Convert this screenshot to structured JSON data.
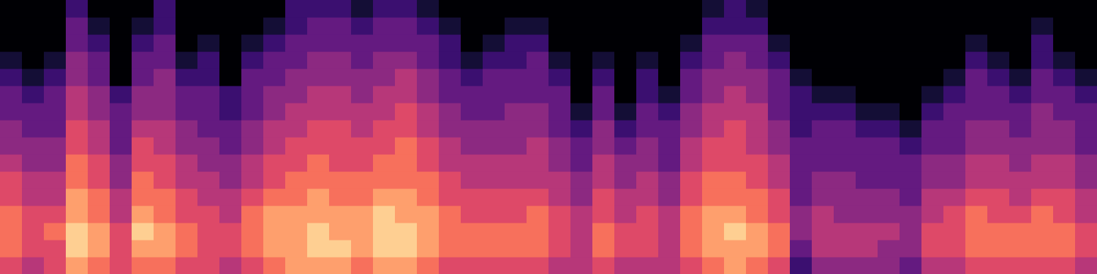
{
  "chart_data": {
    "type": "heatmap",
    "color": "magma",
    "clim": [
      0,
      10
    ],
    "tick_labels": false,
    "frames": [
      [
        6,
        7,
        7,
        7,
        6,
        6,
        5,
        4,
        4,
        3,
        3,
        2,
        1,
        0,
        0,
        0
      ],
      [
        5,
        6,
        6,
        6,
        5,
        5,
        4,
        4,
        3,
        3,
        2,
        1,
        0,
        0,
        0,
        0
      ],
      [
        6,
        6,
        7,
        6,
        5,
        5,
        4,
        4,
        3,
        3,
        3,
        2,
        1,
        0,
        0,
        0
      ],
      [
        8,
        9,
        9,
        8,
        8,
        7,
        7,
        6,
        6,
        5,
        5,
        4,
        4,
        3,
        3,
        2
      ],
      [
        7,
        8,
        8,
        7,
        7,
        6,
        6,
        5,
        5,
        4,
        4,
        3,
        3,
        2,
        1,
        0
      ],
      [
        6,
        6,
        6,
        5,
        5,
        4,
        4,
        3,
        3,
        3,
        2,
        0,
        0,
        0,
        0,
        0
      ],
      [
        7,
        8,
        9,
        8,
        7,
        7,
        6,
        6,
        5,
        4,
        4,
        3,
        3,
        2,
        1,
        0
      ],
      [
        7,
        8,
        8,
        7,
        7,
        6,
        6,
        5,
        5,
        4,
        4,
        4,
        3,
        3,
        2,
        2
      ],
      [
        6,
        7,
        7,
        6,
        6,
        5,
        5,
        4,
        4,
        3,
        3,
        2,
        1,
        0,
        0,
        0
      ],
      [
        6,
        6,
        6,
        6,
        5,
        5,
        4,
        4,
        3,
        3,
        3,
        2,
        2,
        1,
        0,
        0
      ],
      [
        5,
        6,
        6,
        5,
        5,
        4,
        4,
        3,
        3,
        2,
        2,
        0,
        0,
        0,
        0,
        0
      ],
      [
        6,
        7,
        7,
        7,
        6,
        5,
        5,
        4,
        4,
        3,
        3,
        3,
        2,
        1,
        0,
        0
      ],
      [
        7,
        8,
        8,
        8,
        7,
        6,
        6,
        5,
        5,
        4,
        4,
        3,
        3,
        2,
        1,
        0
      ],
      [
        8,
        8,
        8,
        8,
        7,
        7,
        6,
        6,
        5,
        5,
        4,
        4,
        3,
        3,
        2,
        2
      ],
      [
        8,
        9,
        9,
        8,
        8,
        7,
        7,
        6,
        6,
        5,
        5,
        4,
        4,
        3,
        3,
        2
      ],
      [
        8,
        9,
        8,
        8,
        7,
        7,
        6,
        6,
        6,
        5,
        5,
        4,
        4,
        3,
        3,
        2
      ],
      [
        7,
        8,
        8,
        8,
        7,
        7,
        6,
        6,
        5,
        5,
        4,
        4,
        3,
        3,
        2,
        1
      ],
      [
        8,
        9,
        9,
        9,
        8,
        7,
        7,
        6,
        6,
        5,
        5,
        4,
        4,
        3,
        3,
        2
      ],
      [
        8,
        9,
        9,
        8,
        8,
        7,
        7,
        7,
        6,
        6,
        5,
        5,
        4,
        3,
        3,
        2
      ],
      [
        7,
        8,
        8,
        8,
        7,
        7,
        6,
        6,
        5,
        5,
        4,
        4,
        3,
        3,
        2,
        1
      ],
      [
        6,
        7,
        7,
        7,
        6,
        6,
        5,
        5,
        4,
        4,
        3,
        3,
        2,
        2,
        1,
        0
      ],
      [
        6,
        7,
        7,
        6,
        6,
        5,
        5,
        4,
        4,
        3,
        3,
        2,
        1,
        0,
        0,
        0
      ],
      [
        6,
        7,
        7,
        6,
        6,
        5,
        5,
        4,
        4,
        3,
        3,
        3,
        2,
        1,
        0,
        0
      ],
      [
        6,
        7,
        7,
        6,
        6,
        5,
        5,
        4,
        4,
        4,
        3,
        3,
        2,
        2,
        1,
        0
      ],
      [
        6,
        7,
        7,
        7,
        6,
        5,
        5,
        5,
        4,
        4,
        3,
        3,
        3,
        2,
        1,
        0
      ],
      [
        5,
        6,
        6,
        6,
        5,
        5,
        4,
        4,
        3,
        3,
        3,
        2,
        1,
        0,
        0,
        0
      ],
      [
        5,
        5,
        5,
        5,
        4,
        4,
        3,
        3,
        2,
        1,
        0,
        0,
        0,
        0,
        0,
        0
      ],
      [
        6,
        7,
        7,
        6,
        6,
        5,
        5,
        4,
        4,
        3,
        3,
        2,
        1,
        0,
        0,
        0
      ],
      [
        5,
        6,
        6,
        5,
        5,
        4,
        4,
        3,
        2,
        1,
        0,
        0,
        0,
        0,
        0,
        0
      ],
      [
        5,
        6,
        6,
        6,
        5,
        5,
        4,
        4,
        3,
        3,
        2,
        2,
        1,
        0,
        0,
        0
      ],
      [
        5,
        5,
        5,
        5,
        4,
        4,
        3,
        3,
        3,
        2,
        1,
        0,
        0,
        0,
        0,
        0
      ],
      [
        6,
        7,
        7,
        7,
        6,
        6,
        5,
        5,
        4,
        4,
        3,
        3,
        2,
        1,
        0,
        0
      ],
      [
        7,
        8,
        8,
        8,
        7,
        7,
        6,
        6,
        5,
        5,
        4,
        4,
        3,
        3,
        2,
        1
      ],
      [
        8,
        8,
        9,
        8,
        7,
        7,
        6,
        6,
        6,
        5,
        5,
        4,
        4,
        3,
        2,
        2
      ],
      [
        7,
        8,
        8,
        7,
        7,
        6,
        6,
        5,
        5,
        5,
        4,
        4,
        3,
        3,
        2,
        1
      ],
      [
        6,
        7,
        7,
        6,
        6,
        5,
        5,
        4,
        4,
        3,
        3,
        3,
        2,
        1,
        0,
        0
      ],
      [
        2,
        3,
        4,
        4,
        3,
        3,
        3,
        3,
        2,
        2,
        2,
        1,
        0,
        0,
        0,
        0
      ],
      [
        4,
        5,
        5,
        5,
        4,
        4,
        3,
        3,
        3,
        2,
        1,
        0,
        0,
        0,
        0,
        0
      ],
      [
        4,
        5,
        5,
        4,
        4,
        4,
        3,
        3,
        3,
        2,
        1,
        0,
        0,
        0,
        0,
        0
      ],
      [
        4,
        5,
        5,
        4,
        4,
        3,
        3,
        3,
        2,
        1,
        0,
        0,
        0,
        0,
        0,
        0
      ],
      [
        4,
        4,
        5,
        4,
        4,
        3,
        3,
        3,
        2,
        1,
        0,
        0,
        0,
        0,
        0,
        0
      ],
      [
        3,
        4,
        4,
        4,
        3,
        3,
        3,
        2,
        1,
        0,
        0,
        0,
        0,
        0,
        0,
        0
      ],
      [
        5,
        6,
        6,
        5,
        5,
        4,
        4,
        3,
        3,
        2,
        1,
        0,
        0,
        0,
        0,
        0
      ],
      [
        5,
        6,
        6,
        6,
        5,
        4,
        4,
        3,
        3,
        3,
        2,
        1,
        0,
        0,
        0,
        0
      ],
      [
        6,
        7,
        7,
        7,
        6,
        5,
        5,
        4,
        4,
        3,
        3,
        3,
        2,
        1,
        0,
        0
      ],
      [
        6,
        7,
        7,
        6,
        6,
        5,
        5,
        4,
        4,
        3,
        3,
        2,
        1,
        0,
        0,
        0
      ],
      [
        6,
        7,
        7,
        6,
        5,
        5,
        4,
        4,
        3,
        3,
        2,
        1,
        0,
        0,
        0,
        0
      ],
      [
        6,
        7,
        7,
        7,
        6,
        5,
        5,
        4,
        4,
        4,
        3,
        3,
        2,
        2,
        1,
        0
      ],
      [
        6,
        7,
        7,
        6,
        6,
        5,
        5,
        4,
        4,
        3,
        3,
        2,
        1,
        0,
        0,
        0
      ],
      [
        5,
        6,
        6,
        5,
        5,
        4,
        4,
        3,
        3,
        3,
        2,
        1,
        0,
        0,
        0,
        0
      ]
    ]
  }
}
